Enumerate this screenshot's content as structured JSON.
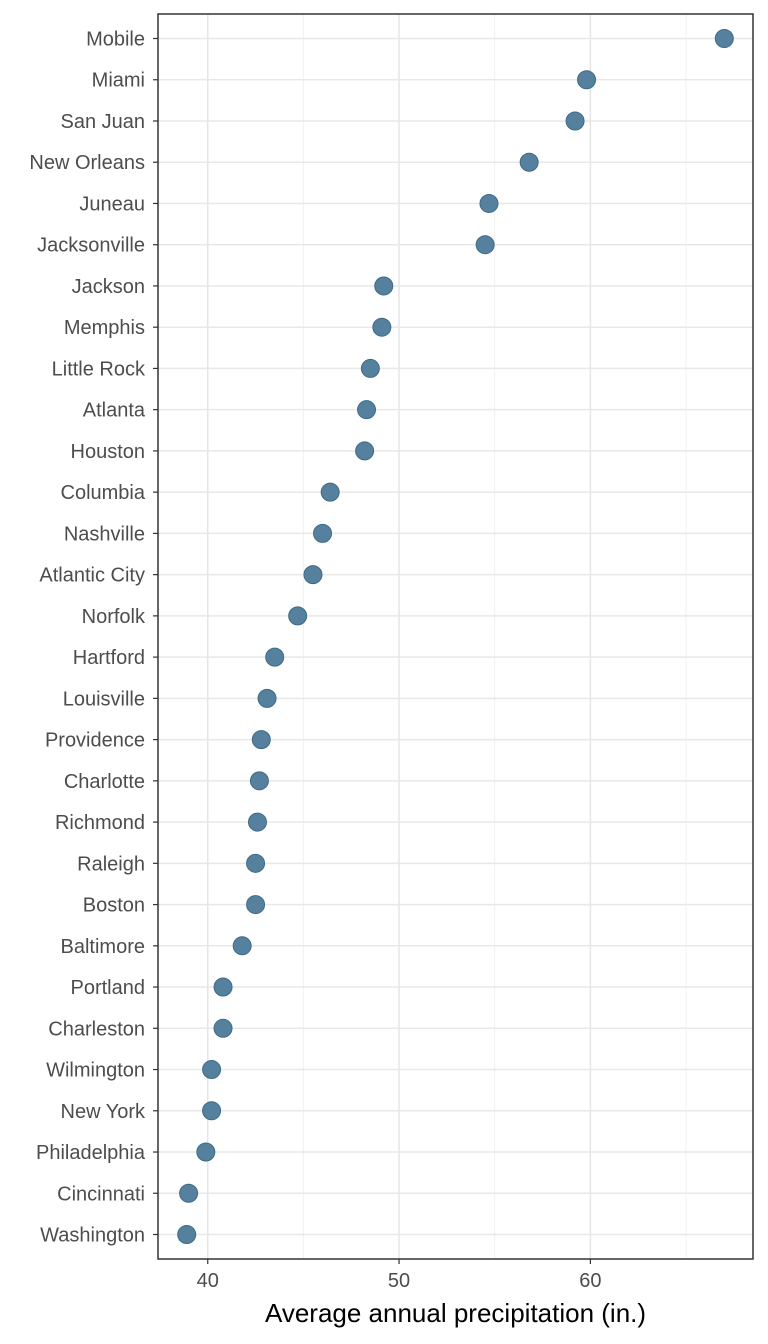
{
  "chart_data": {
    "type": "scatter",
    "title": "",
    "xlabel": "Average annual precipitation (in.)",
    "ylabel": "",
    "xlim": [
      37.4,
      68.5
    ],
    "xticks": [
      40,
      50,
      60
    ],
    "grid": true,
    "legend": "none",
    "point_color": "#55819f",
    "categories": [
      "Mobile",
      "Miami",
      "San Juan",
      "New Orleans",
      "Juneau",
      "Jacksonville",
      "Jackson",
      "Memphis",
      "Little Rock",
      "Atlanta",
      "Houston",
      "Columbia",
      "Nashville",
      "Atlantic City",
      "Norfolk",
      "Hartford",
      "Louisville",
      "Providence",
      "Charlotte",
      "Richmond",
      "Raleigh",
      "Boston",
      "Baltimore",
      "Portland",
      "Charleston",
      "Wilmington",
      "New York",
      "Philadelphia",
      "Cincinnati",
      "Washington"
    ],
    "values": [
      67.0,
      59.8,
      59.2,
      56.8,
      54.7,
      54.5,
      49.2,
      49.1,
      48.5,
      48.3,
      48.2,
      46.4,
      46.0,
      45.5,
      44.7,
      43.5,
      43.1,
      42.8,
      42.7,
      42.6,
      42.5,
      42.5,
      41.8,
      40.8,
      40.8,
      40.2,
      40.2,
      39.9,
      39.0,
      38.9
    ]
  }
}
